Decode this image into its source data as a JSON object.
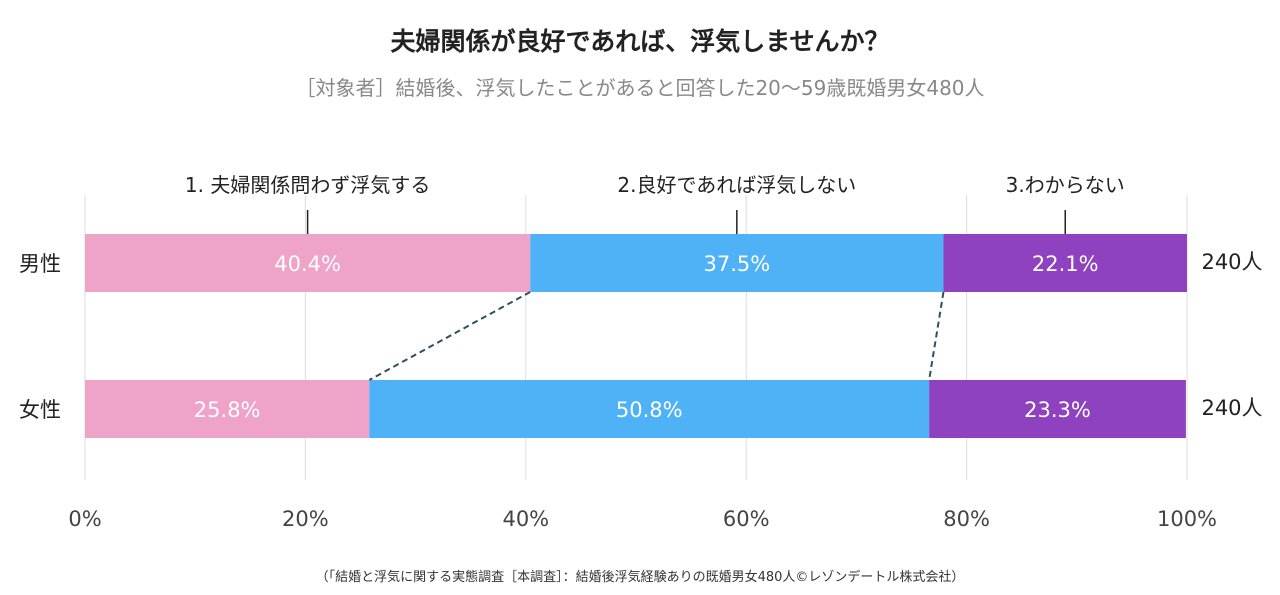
{
  "title": "夫婦関係が良好であれば、浮気しませんか？",
  "subtitle": "［対象者］結婚後、浮気したことがあると回答した20～59歳既婚男女480人",
  "source": "（「結婚と浮気に関する実態調査［本調査］：結婚後浮気経験ありの既婚男女480人©レゾンデートル株式会社）",
  "chart_data": {
    "type": "bar",
    "orientation": "horizontal",
    "stacked": true,
    "categories": [
      "男性",
      "女性"
    ],
    "series": [
      {
        "name": "1. 夫婦関係問わず浮気する",
        "values": [
          40.4,
          25.8
        ],
        "color": "#f0a3c9",
        "labels": [
          "40.4%",
          "25.8%"
        ]
      },
      {
        "name": "2.良好であれば浮気しない",
        "values": [
          37.5,
          50.8
        ],
        "color": "#4fb2f6",
        "labels": [
          "37.5%",
          "50.8%"
        ]
      },
      {
        "name": "3.わからない",
        "values": [
          22.1,
          23.3
        ],
        "color": "#8e42bf",
        "labels": [
          "22.1%",
          "23.3%"
        ]
      }
    ],
    "totals": [
      "240人",
      "240人"
    ],
    "xlim": [
      0,
      100
    ],
    "xticks": [
      "0%",
      "20%",
      "40%",
      "60%",
      "80%",
      "100%"
    ],
    "grid": true,
    "legend": "top, above bars with leader lines",
    "series_connector_lines": "dashed"
  }
}
